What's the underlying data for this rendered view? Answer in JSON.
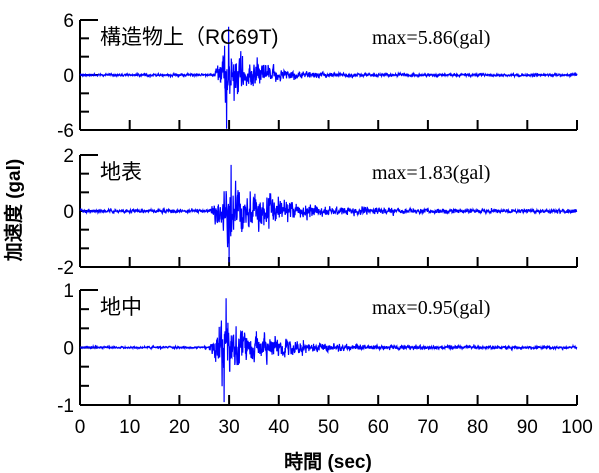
{
  "chart_data": {
    "type": "line",
    "shared_x_axis": {
      "label": "時間 (sec)",
      "range": [
        0,
        100
      ],
      "ticks": [
        0,
        10,
        20,
        30,
        40,
        50,
        60,
        70,
        80,
        90,
        100
      ]
    },
    "shared_y_label": "加速度 (gal)",
    "line_color": "#0000ff",
    "panels": [
      {
        "name": "構造物上（RC69T)",
        "max_label": "max=5.86(gal)",
        "max_value": 5.86,
        "ylim": [
          -6,
          6
        ],
        "y_ticks": [
          "6",
          "0",
          "-6"
        ],
        "onset_sec": 27,
        "peak_time_sec": 29.5,
        "noise": 0.14,
        "decay_sec": 6,
        "late_level": 0.06
      },
      {
        "name": "地表",
        "max_label": "max=1.83(gal)",
        "max_value": 1.83,
        "ylim": [
          -2,
          2
        ],
        "y_ticks": [
          "2",
          "0",
          "-2"
        ],
        "onset_sec": 26,
        "peak_time_sec": 30,
        "noise": 0.07,
        "decay_sec": 9,
        "late_level": 0.05
      },
      {
        "name": "地中",
        "max_label": "max=0.95(gal)",
        "max_value": 0.95,
        "ylim": [
          -1,
          1
        ],
        "y_ticks": [
          "1",
          "0",
          "-1"
        ],
        "onset_sec": 26,
        "peak_time_sec": 29,
        "noise": 0.02,
        "decay_sec": 8,
        "late_level": 0.04
      }
    ]
  }
}
